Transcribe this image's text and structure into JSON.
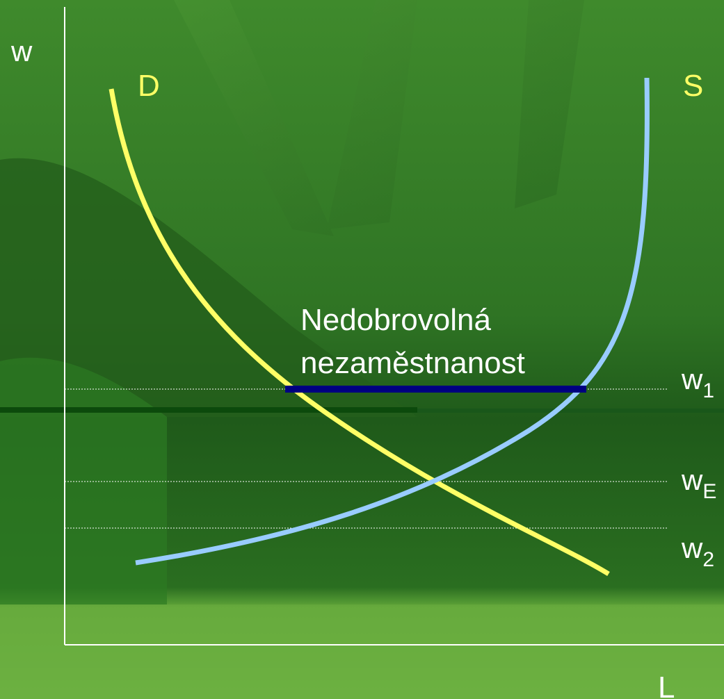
{
  "axes": {
    "y_label": "w",
    "x_label": "L"
  },
  "curves": {
    "demand": "D",
    "supply": "S"
  },
  "annotation": [
    "Nedobrovolná",
    "nezaměstnanost"
  ],
  "wage_levels": [
    {
      "main": "w",
      "sub": "1"
    },
    {
      "main": "w",
      "sub": "E"
    },
    {
      "main": "w",
      "sub": "2"
    }
  ]
}
